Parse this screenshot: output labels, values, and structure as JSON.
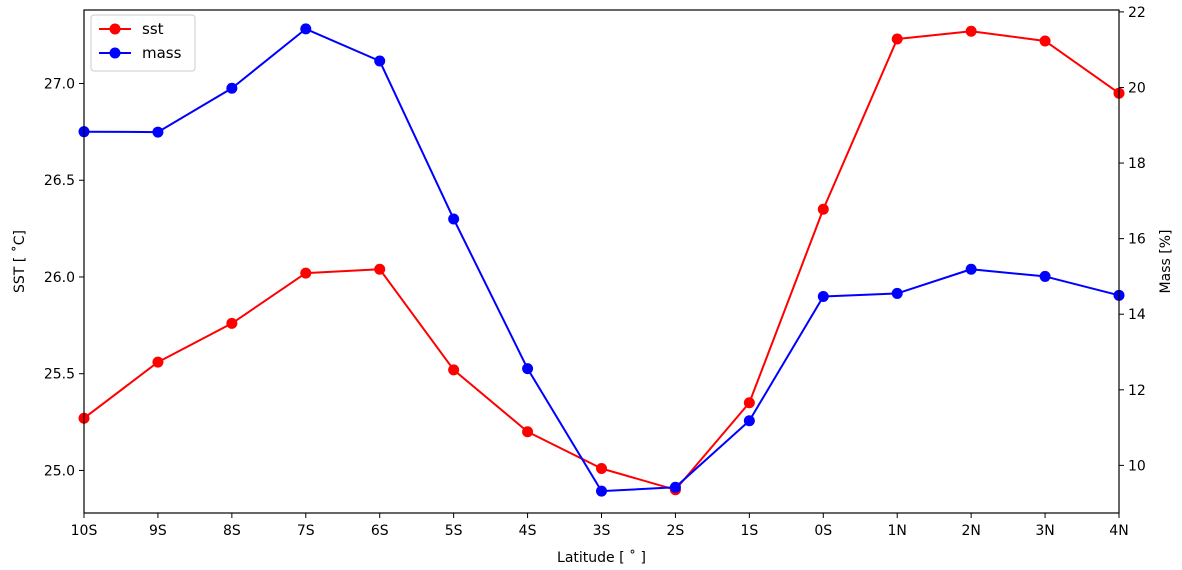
{
  "chart_data": {
    "type": "line",
    "categories": [
      "10S",
      "9S",
      "8S",
      "7S",
      "6S",
      "5S",
      "4S",
      "3S",
      "2S",
      "1S",
      "0S",
      "1N",
      "2N",
      "3N",
      "4N"
    ],
    "xlabel": "Latitude [$^\\circ$]",
    "xlabel_text": "Latitude [ ˚ ]",
    "series": [
      {
        "name": "sst",
        "axis": "left",
        "color": "#ff0000",
        "values": [
          25.27,
          25.56,
          25.76,
          26.02,
          26.04,
          25.52,
          25.2,
          25.01,
          24.9,
          25.35,
          26.35,
          27.23,
          27.27,
          27.22,
          26.95
        ]
      },
      {
        "name": "mass",
        "axis": "right",
        "color": "#0000ff",
        "values": [
          18.83,
          18.82,
          19.98,
          21.55,
          20.7,
          16.52,
          12.56,
          9.32,
          9.42,
          11.18,
          14.47,
          14.55,
          15.19,
          15.0,
          14.5
        ]
      }
    ],
    "left_axis": {
      "label": "SST [ ˚C]",
      "ylim": [
        24.78,
        27.38
      ],
      "ticks": [
        25.0,
        25.5,
        26.0,
        26.5,
        27.0
      ],
      "tick_labels": [
        "25.0",
        "25.5",
        "26.0",
        "26.5",
        "27.0"
      ]
    },
    "right_axis": {
      "label": "Mass [%]",
      "ylim": [
        8.74,
        22.05
      ],
      "ticks": [
        10,
        12,
        14,
        16,
        18,
        20,
        22
      ],
      "tick_labels": [
        "10",
        "12",
        "14",
        "16",
        "18",
        "20",
        "22"
      ]
    },
    "legend": {
      "placement": "top-left"
    },
    "grid": false
  }
}
